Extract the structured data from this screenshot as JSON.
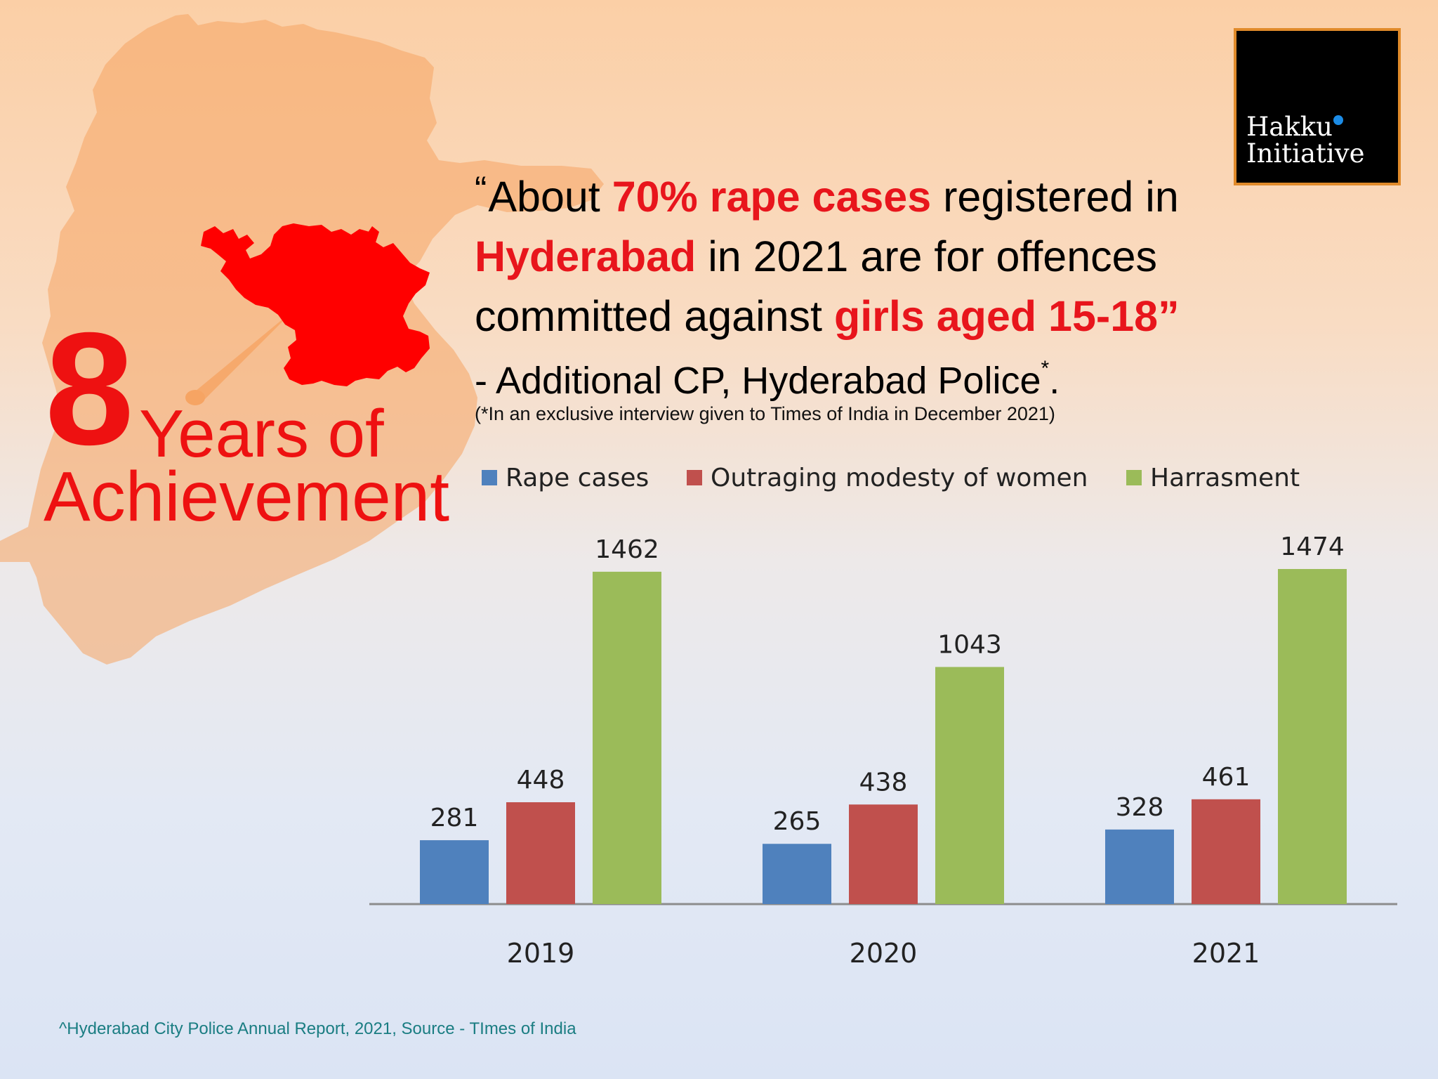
{
  "badge": {
    "number": "8",
    "line1": "Years of",
    "line2": "Achievement"
  },
  "logo": {
    "text": "Hakku\nInitiative",
    "dot_color": "#1c8ce6"
  },
  "quote": {
    "open_mark": "“",
    "p1": "About ",
    "hl1": "70% rape cases",
    "p2": " registered in ",
    "hl2": "Hyderabad",
    "p3": " in 2021 are for offences committed against ",
    "hl3": "girls aged 15-18",
    "close_mark": "”"
  },
  "attribution": {
    "text": "- Additional CP, Hyderabad Police",
    "star": "*",
    "end": "."
  },
  "footnote": "(*In an exclusive interview given to Times of India in December 2021)",
  "source": "^Hyderabad City Police Annual Report, 2021, Source - TImes of India",
  "colors": {
    "accent_red": "#e8151c",
    "map_red": "#ff0000"
  },
  "chart_data": {
    "type": "bar",
    "categories": [
      "2019",
      "2020",
      "2021"
    ],
    "series": [
      {
        "name": "Rape cases",
        "values": [
          281,
          265,
          328
        ],
        "color": "#4f81bd"
      },
      {
        "name": "Outraging modesty of women",
        "values": [
          448,
          438,
          461
        ],
        "color": "#c0504d"
      },
      {
        "name": "Harrasment",
        "values": [
          1462,
          1043,
          1474
        ],
        "color": "#9bbb59"
      }
    ],
    "title": "",
    "xlabel": "",
    "ylabel": "",
    "ylim": [
      0,
      1474
    ],
    "grid": false,
    "legend": "top",
    "data_labels": true
  }
}
